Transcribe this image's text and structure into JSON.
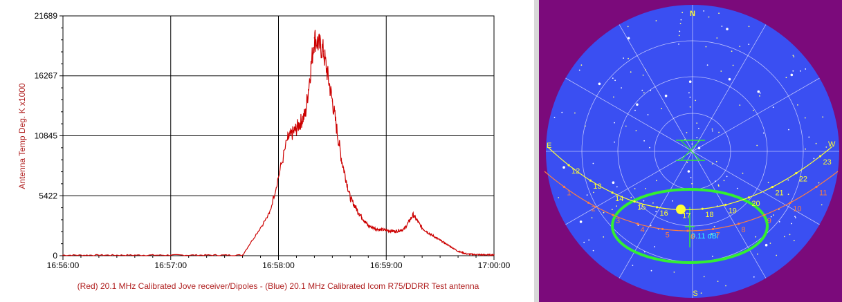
{
  "chart_data": [
    {
      "type": "line",
      "ylabel": "Antenna Temp Deg. K x1000",
      "xlabel": "(Red) 20.1 MHz Calibrated Jove receiver/Dipoles - (Blue) 20.1 MHz Calibrated Icom R75/DDRR Test antenna",
      "x_tick_labels": [
        "16:56:00",
        "16:57:00",
        "16:58:00",
        "16:59:00",
        "17:00:00"
      ],
      "y_tick_labels": [
        "0",
        "5422",
        "10845",
        "16267",
        "21689"
      ],
      "xlim": [
        0,
        240
      ],
      "ylim": [
        0,
        21689
      ],
      "x_unit": "seconds after 16:56:00",
      "grid": true,
      "series": [
        {
          "color": "#cc0000",
          "x": [
            0,
            20,
            40,
            60,
            80,
            100,
            115,
            125,
            130,
            135,
            140,
            145,
            150,
            155,
            160,
            165,
            170,
            175,
            180,
            185,
            190,
            195,
            200,
            205,
            210,
            215,
            220,
            225,
            230,
            235,
            240
          ],
          "values": [
            50,
            50,
            50,
            50,
            50,
            50,
            3800,
            10500,
            11500,
            12800,
            19700,
            18500,
            14000,
            8800,
            5200,
            3800,
            2700,
            2400,
            2300,
            2200,
            2400,
            3700,
            2500,
            1900,
            1400,
            900,
            400,
            150,
            100,
            80,
            80
          ]
        }
      ]
    },
    {
      "type": "scatter",
      "title": "",
      "compass": {
        "north": "N",
        "south": "S",
        "east": "E",
        "west": "W"
      },
      "gain_label": "9.11 dBi",
      "yellow_track_hours": [
        "12",
        "13",
        "14",
        "15",
        "16",
        "17",
        "18",
        "19",
        "20",
        "21",
        "22",
        "23"
      ],
      "orange_track_hours": [
        "1",
        "2",
        "3",
        "4",
        "5",
        "6",
        "7",
        "8",
        "9",
        "10",
        "11"
      ]
    }
  ],
  "colors": {
    "plot_line": "#cc0000",
    "axis_title": "#b02020",
    "sky_background": "#7b0a7b",
    "sky_disc": "#3a4ff2",
    "grid_lines": "#e8e8ff",
    "yellow_track": "#ffff33",
    "orange_track": "#ff7f3f",
    "beam_ellipse": "#33ee33",
    "gain_text": "#33ffff"
  }
}
